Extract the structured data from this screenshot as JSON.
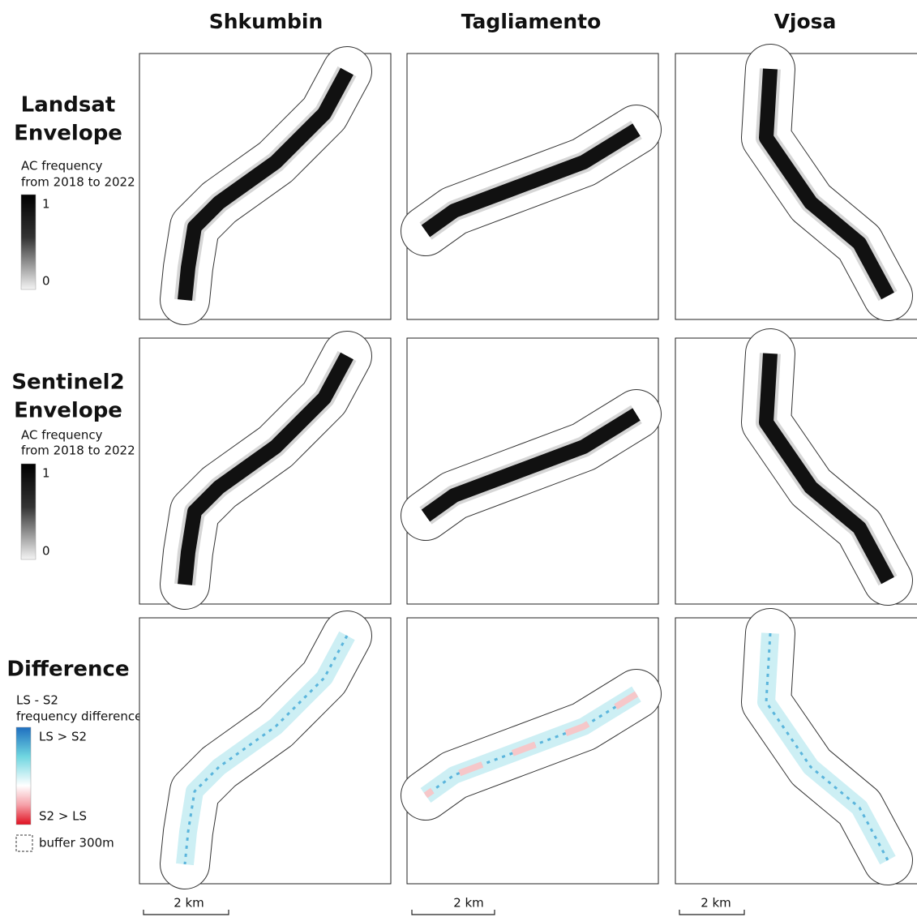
{
  "columns": [
    "Shkumbin",
    "Tagliamento",
    "Vjosa"
  ],
  "rows": [
    {
      "title_lines": [
        "Landsat",
        "Envelope"
      ],
      "legend": {
        "title_lines": [
          "AC frequency",
          "from 2018 to 2022"
        ],
        "labels": [
          "1",
          "0"
        ]
      }
    },
    {
      "title_lines": [
        "Sentinel2",
        "Envelope"
      ],
      "legend": {
        "title_lines": [
          "AC frequency",
          "from 2018 to 2022"
        ],
        "labels": [
          "1",
          "0"
        ]
      }
    },
    {
      "title_lines": [
        "Difference"
      ],
      "legend": {
        "title_lines": [
          "LS - S2",
          "frequency difference"
        ],
        "labels": [
          "LS > S2",
          "S2 > LS"
        ]
      }
    }
  ],
  "buffer_legend": "buffer 300m",
  "scale_bars": [
    "2 km",
    "2 km",
    "2 km"
  ]
}
